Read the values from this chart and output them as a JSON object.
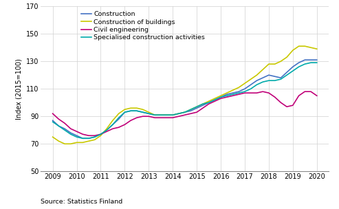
{
  "ylabel": "Index (2015=100)",
  "source": "Source: Statistics Finland",
  "xlim": [
    2008.5,
    2020.5
  ],
  "ylim": [
    50,
    170
  ],
  "yticks": [
    50,
    70,
    90,
    110,
    130,
    150,
    170
  ],
  "xticks": [
    2009,
    2010,
    2011,
    2012,
    2013,
    2014,
    2015,
    2016,
    2017,
    2018,
    2019,
    2020
  ],
  "series": {
    "Construction": {
      "color": "#4472C4",
      "data_x": [
        2009.0,
        2009.25,
        2009.5,
        2009.75,
        2010.0,
        2010.25,
        2010.5,
        2010.75,
        2011.0,
        2011.25,
        2011.5,
        2011.75,
        2012.0,
        2012.25,
        2012.5,
        2012.75,
        2013.0,
        2013.25,
        2013.5,
        2013.75,
        2014.0,
        2014.25,
        2014.5,
        2014.75,
        2015.0,
        2015.25,
        2015.5,
        2015.75,
        2016.0,
        2016.25,
        2016.5,
        2016.75,
        2017.0,
        2017.25,
        2017.5,
        2017.75,
        2018.0,
        2018.25,
        2018.5,
        2018.75,
        2019.0,
        2019.25,
        2019.5,
        2019.75,
        2020.0
      ],
      "data_y": [
        87,
        83,
        81,
        78,
        76,
        74,
        74,
        75,
        77,
        80,
        84,
        88,
        93,
        94,
        94,
        93,
        92,
        91,
        91,
        91,
        91,
        92,
        93,
        94,
        96,
        98,
        100,
        102,
        104,
        106,
        107,
        108,
        110,
        113,
        116,
        118,
        120,
        119,
        118,
        122,
        126,
        129,
        131,
        131,
        131
      ]
    },
    "Construction of buildings": {
      "color": "#C9C800",
      "data_x": [
        2009.0,
        2009.25,
        2009.5,
        2009.75,
        2010.0,
        2010.25,
        2010.5,
        2010.75,
        2011.0,
        2011.25,
        2011.5,
        2011.75,
        2012.0,
        2012.25,
        2012.5,
        2012.75,
        2013.0,
        2013.25,
        2013.5,
        2013.75,
        2014.0,
        2014.25,
        2014.5,
        2014.75,
        2015.0,
        2015.25,
        2015.5,
        2015.75,
        2016.0,
        2016.25,
        2016.5,
        2016.75,
        2017.0,
        2017.25,
        2017.5,
        2017.75,
        2018.0,
        2018.25,
        2018.5,
        2018.75,
        2019.0,
        2019.25,
        2019.5,
        2019.75,
        2020.0
      ],
      "data_y": [
        75,
        72,
        70,
        70,
        71,
        71,
        72,
        73,
        76,
        81,
        87,
        92,
        95,
        96,
        96,
        95,
        93,
        91,
        91,
        91,
        91,
        92,
        93,
        95,
        97,
        99,
        101,
        103,
        105,
        107,
        109,
        111,
        114,
        117,
        120,
        124,
        128,
        128,
        130,
        133,
        138,
        141,
        141,
        140,
        139
      ]
    },
    "Civil engineering": {
      "color": "#C00078",
      "data_x": [
        2009.0,
        2009.25,
        2009.5,
        2009.75,
        2010.0,
        2010.25,
        2010.5,
        2010.75,
        2011.0,
        2011.25,
        2011.5,
        2011.75,
        2012.0,
        2012.25,
        2012.5,
        2012.75,
        2013.0,
        2013.25,
        2013.5,
        2013.75,
        2014.0,
        2014.25,
        2014.5,
        2014.75,
        2015.0,
        2015.25,
        2015.5,
        2015.75,
        2016.0,
        2016.25,
        2016.5,
        2016.75,
        2017.0,
        2017.25,
        2017.5,
        2017.75,
        2018.0,
        2018.25,
        2018.5,
        2018.75,
        2019.0,
        2019.25,
        2019.5,
        2019.75,
        2020.0
      ],
      "data_y": [
        92,
        88,
        85,
        81,
        79,
        77,
        76,
        76,
        77,
        79,
        81,
        82,
        84,
        87,
        89,
        90,
        90,
        89,
        89,
        89,
        89,
        90,
        91,
        92,
        93,
        96,
        99,
        101,
        103,
        104,
        105,
        106,
        107,
        107,
        107,
        108,
        107,
        104,
        100,
        97,
        98,
        105,
        108,
        108,
        105
      ]
    },
    "Specialised construction activities": {
      "color": "#00AAAA",
      "data_x": [
        2009.0,
        2009.25,
        2009.5,
        2009.75,
        2010.0,
        2010.25,
        2010.5,
        2010.75,
        2011.0,
        2011.25,
        2011.5,
        2011.75,
        2012.0,
        2012.25,
        2012.5,
        2012.75,
        2013.0,
        2013.25,
        2013.5,
        2013.75,
        2014.0,
        2014.25,
        2014.5,
        2014.75,
        2015.0,
        2015.25,
        2015.5,
        2015.75,
        2016.0,
        2016.25,
        2016.5,
        2016.75,
        2017.0,
        2017.25,
        2017.5,
        2017.75,
        2018.0,
        2018.25,
        2018.5,
        2018.75,
        2019.0,
        2019.25,
        2019.5,
        2019.75,
        2020.0
      ],
      "data_y": [
        86,
        83,
        80,
        77,
        75,
        74,
        74,
        75,
        77,
        80,
        84,
        89,
        93,
        94,
        94,
        93,
        92,
        91,
        91,
        91,
        91,
        92,
        93,
        95,
        97,
        99,
        100,
        102,
        104,
        105,
        106,
        107,
        108,
        110,
        113,
        115,
        116,
        116,
        117,
        120,
        123,
        126,
        128,
        129,
        129
      ]
    }
  },
  "legend_order": [
    "Construction",
    "Construction of buildings",
    "Civil engineering",
    "Specialised construction activities"
  ],
  "background_color": "#ffffff",
  "grid_color": "#d0d0d0"
}
